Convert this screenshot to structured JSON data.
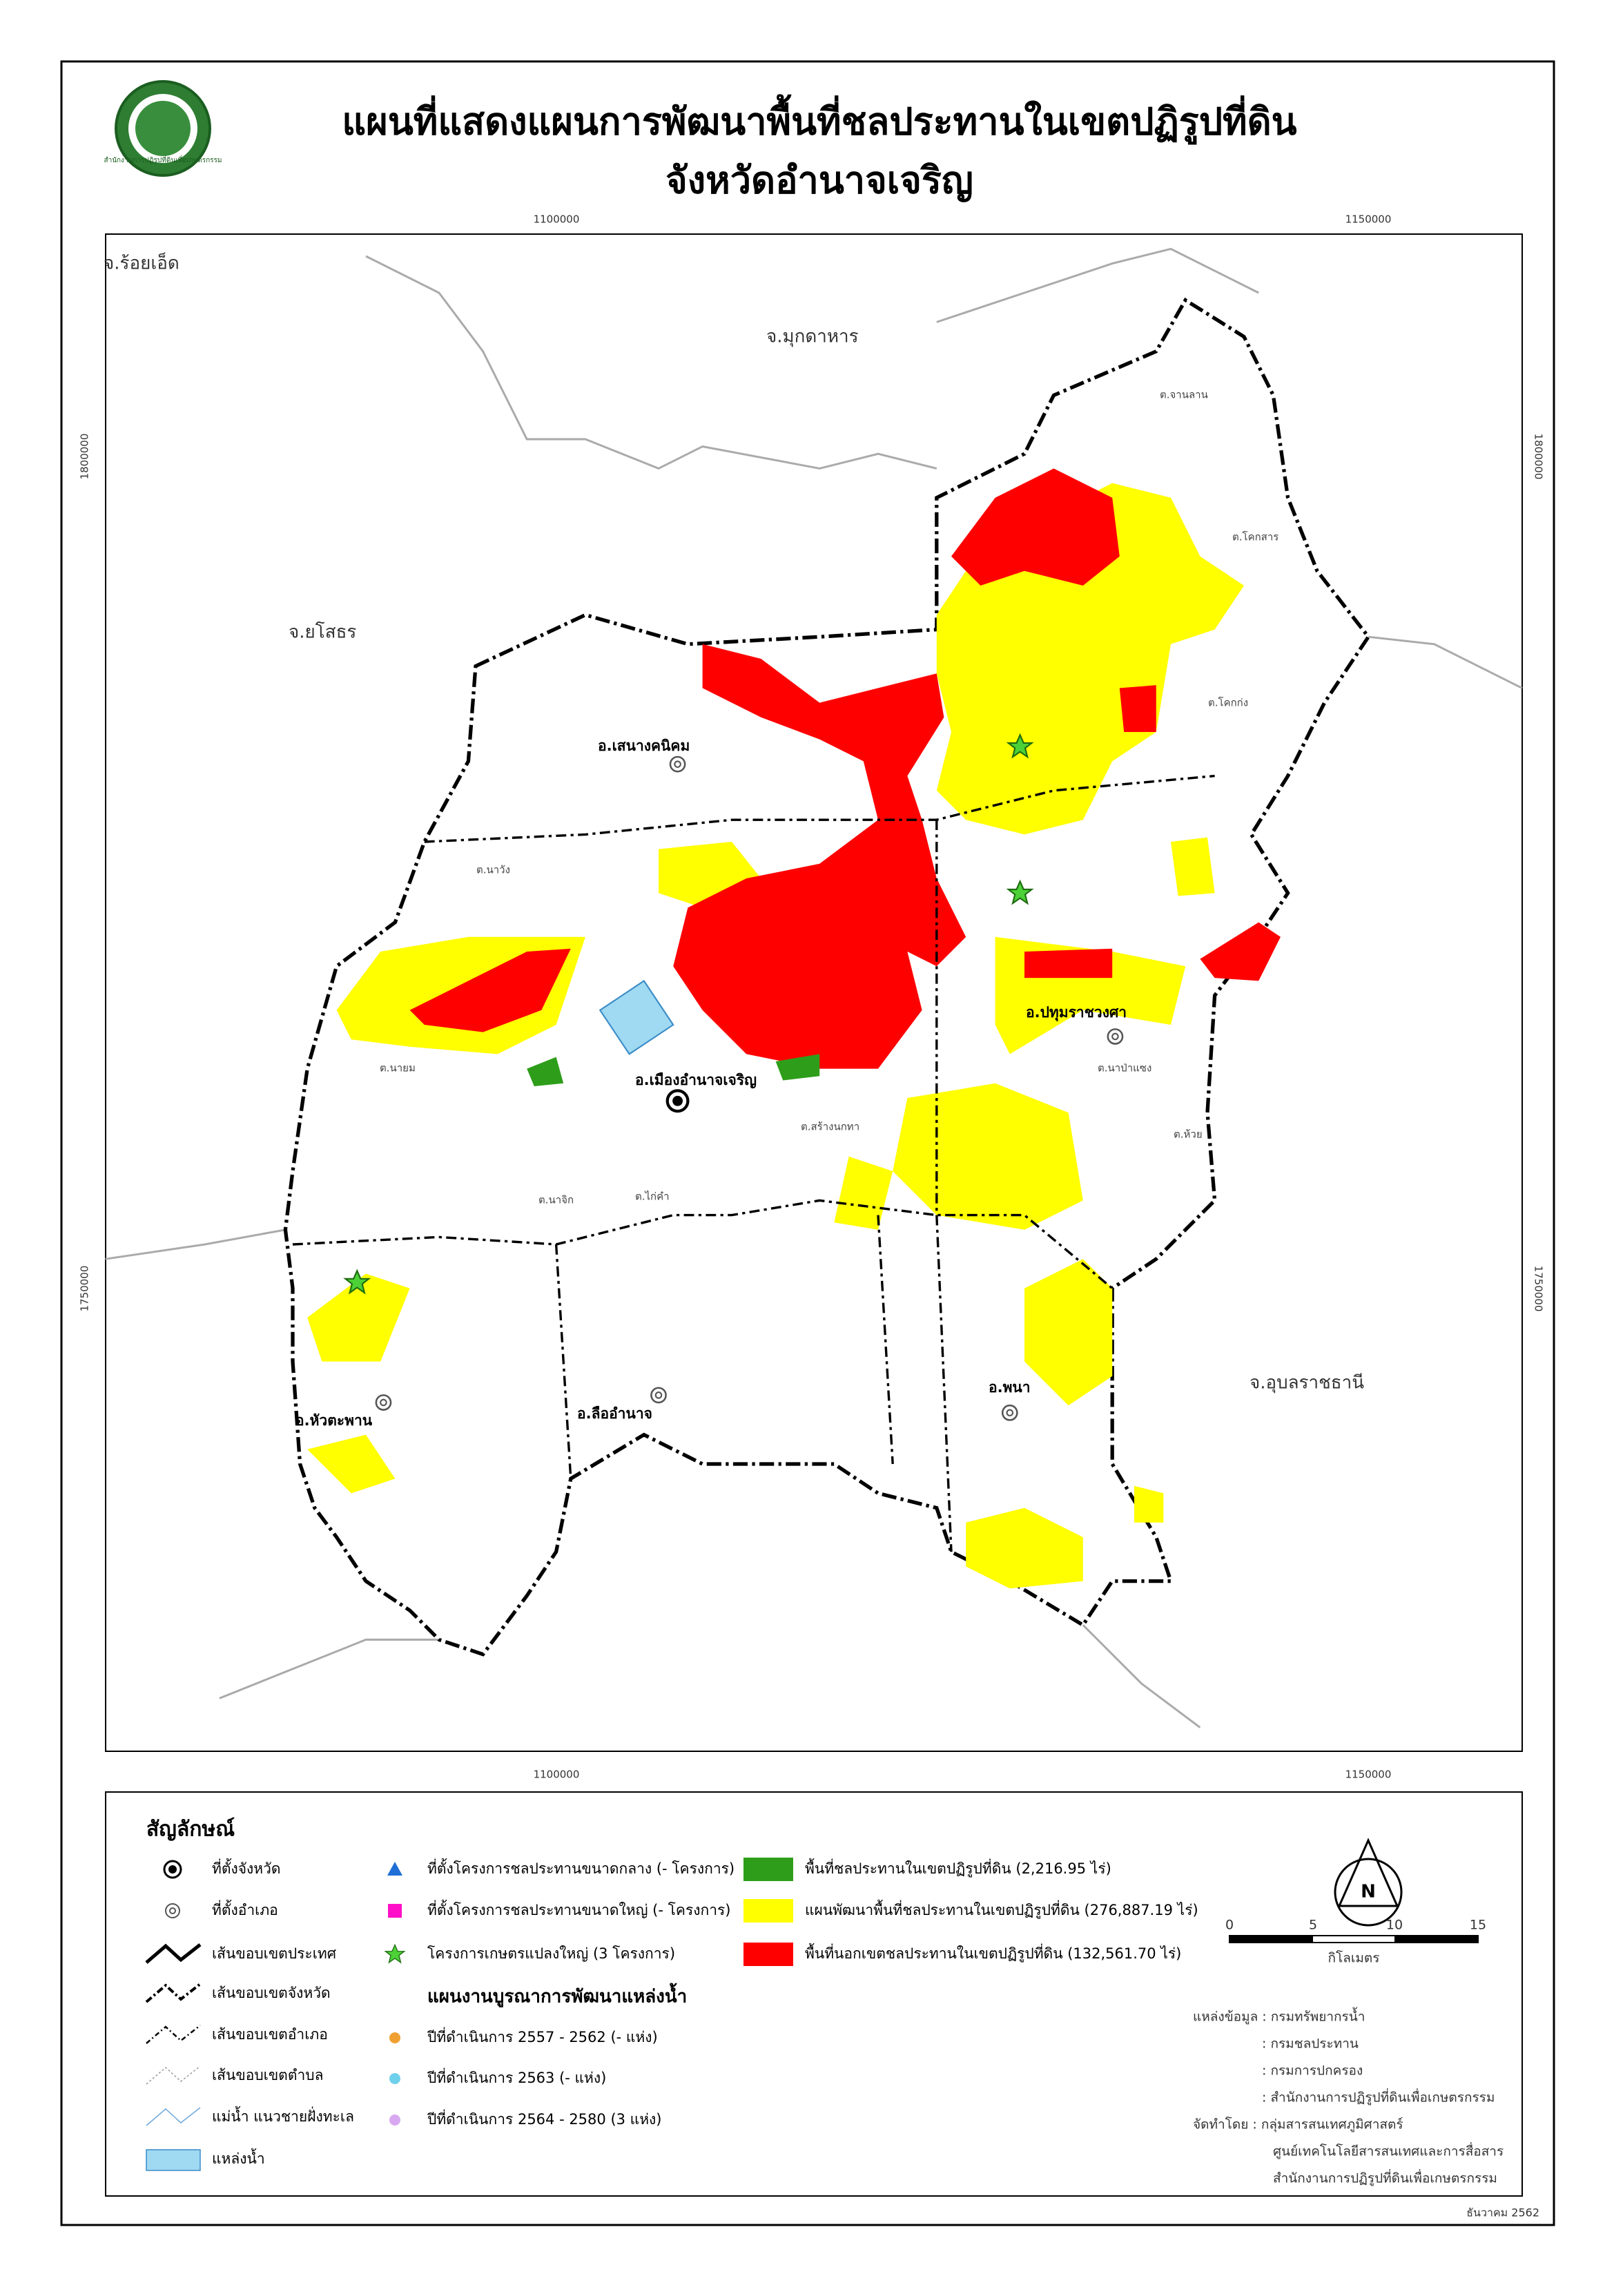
{
  "header": {
    "title_line1": "แผนที่แสดงแผนการพัฒนาพื้นที่ชลประทานในเขตปฏิรูปที่ดิน",
    "title_line2": "จังหวัดอำนาจเจริญ",
    "logo_text": "สำนักงานการปฏิรูปที่ดินเพื่อเกษตรกรรม"
  },
  "grid_labels": {
    "top": [
      "1100000",
      "1150000"
    ],
    "bottom": [
      "1100000",
      "1150000"
    ],
    "left": [
      "1800000",
      "1750000"
    ],
    "right": [
      "1800000",
      "1750000"
    ]
  },
  "place_labels": {
    "provinces": [
      "จ.ร้อยเอ็ด",
      "จ.มุกดาหาร",
      "จ.ยโสธร",
      "จ.อุบลราชธานี"
    ],
    "districts": [
      "อ.เสนางคนิคม",
      "อ.เมืองอำนาจเจริญ",
      "อ.ปทุมราชวงศา",
      "อ.พนา",
      "อ.ลืออำนาจ",
      "อ.หัวตะพาน"
    ],
    "subdistricts": [
      "ต.โคกสาร",
      "ต.นาวัง",
      "ต.ไก่คำ",
      "ต.สร้างนกทา",
      "ต.นาป่าแซง",
      "ต.ห้วย",
      "ต.โคกก่ง",
      "ต.นาจิก",
      "ต.นายม",
      "ต.จานลาน"
    ]
  },
  "legend": {
    "title": "สัญลักษณ์",
    "left": [
      "ที่ตั้งจังหวัด",
      "ที่ตั้งอำเภอ",
      "เส้นขอบเขตประเทศ",
      "เส้นขอบเขตจังหวัด",
      "เส้นขอบเขตอำเภอ",
      "เส้นขอบเขตตำบล",
      "แม่น้ำ แนวชายฝั่งทะเล",
      "แหล่งน้ำ"
    ],
    "middle": [
      "ที่ตั้งโครงการชลประทานขนาดกลาง (- โครงการ)",
      "ที่ตั้งโครงการชลประทานขนาดใหญ่ (- โครงการ)",
      "โครงการเกษตรแปลงใหญ่ (3 โครงการ)"
    ],
    "right": [
      "พื้นที่ชลประทานในเขตปฏิรูปที่ดิน (2,216.95 ไร่)",
      "แผนพัฒนาพื้นที่ชลประทานในเขตปฏิรูปที่ดิน (276,887.19 ไร่)",
      "พื้นที่นอกเขตชลประทานในเขตปฏิรูปที่ดิน (132,561.70 ไร่)"
    ],
    "water_plan": {
      "title": "แผนงานบูรณาการพัฒนาแหล่งน้ำ",
      "items": [
        "ปีที่ดำเนินการ 2557 - 2562 (- แห่ง)",
        "ปีที่ดำเนินการ 2563 (- แห่ง)",
        "ปีที่ดำเนินการ 2564 - 2580 (3 แห่ง)"
      ]
    }
  },
  "scale_bar": {
    "ticks": [
      "0",
      "5",
      "10",
      "15"
    ],
    "unit": "กิโลเมตร"
  },
  "credits": [
    "แหล่งข้อมูล : กรมทรัพยากรน้ำ",
    ": กรมชลประทาน",
    ": กรมการปกครอง",
    ": สำนักงานการปฏิรูปที่ดินเพื่อเกษตรกรรม",
    "จัดทำโดย : กลุ่มสารสนเทศภูมิศาสตร์",
    "ศูนย์เทคโนโลยีสารสนเทศและการสื่อสาร",
    "สำนักงานการปฏิรูปที่ดินเพื่อเกษตรกรรม"
  ],
  "date": "ธันวาคม 2562"
}
